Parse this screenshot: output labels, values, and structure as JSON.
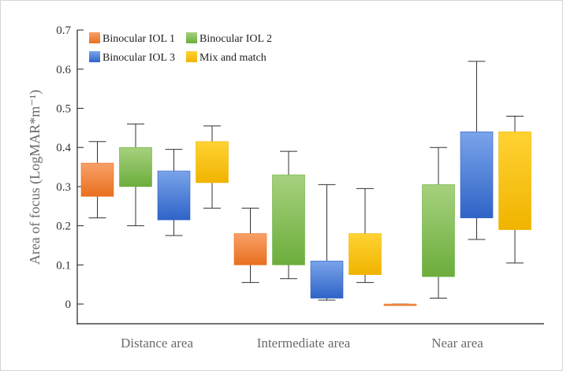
{
  "chart_data": {
    "type": "boxplot",
    "title": "",
    "xlabel": "",
    "ylabel": "Area of focus (LogMAR*m⁻¹)",
    "ylim": [
      -0.05,
      0.7
    ],
    "yticks": [
      0,
      0.1,
      0.2,
      0.3,
      0.4,
      0.5,
      0.6,
      0.7
    ],
    "ytick_labels": [
      "0",
      "0.1",
      "0.2",
      "0.3",
      "0.4",
      "0.5",
      "0.6",
      "0.7"
    ],
    "categories": [
      "Distance area",
      "Intermediate area",
      "Near area"
    ],
    "legend_position": "top-left",
    "series": [
      {
        "name": "Binocular IOL 1",
        "color_top": "#f8a068",
        "color_bottom": "#e8701e",
        "boxes": [
          {
            "min": 0.22,
            "q1": 0.275,
            "q3": 0.36,
            "max": 0.415
          },
          {
            "min": 0.055,
            "q1": 0.1,
            "q3": 0.18,
            "max": 0.245
          },
          {
            "min": -0.003,
            "q1": -0.003,
            "q3": 0.0,
            "max": 0.0
          }
        ]
      },
      {
        "name": "Binocular IOL 2",
        "color_top": "#a6d17e",
        "color_bottom": "#6cad3c",
        "boxes": [
          {
            "min": 0.2,
            "q1": 0.3,
            "q3": 0.4,
            "max": 0.46
          },
          {
            "min": 0.065,
            "q1": 0.1,
            "q3": 0.33,
            "max": 0.39
          },
          {
            "min": 0.015,
            "q1": 0.07,
            "q3": 0.305,
            "max": 0.4
          }
        ]
      },
      {
        "name": "Binocular IOL 3",
        "color_top": "#7aa4ea",
        "color_bottom": "#2f63c7",
        "boxes": [
          {
            "min": 0.175,
            "q1": 0.215,
            "q3": 0.34,
            "max": 0.395
          },
          {
            "min": 0.01,
            "q1": 0.015,
            "q3": 0.11,
            "max": 0.305
          },
          {
            "min": 0.165,
            "q1": 0.22,
            "q3": 0.44,
            "max": 0.62
          }
        ]
      },
      {
        "name": "Mix and match",
        "color_top": "#ffd233",
        "color_bottom": "#f0b400",
        "boxes": [
          {
            "min": 0.245,
            "q1": 0.31,
            "q3": 0.415,
            "max": 0.455
          },
          {
            "min": 0.055,
            "q1": 0.075,
            "q3": 0.18,
            "max": 0.295
          },
          {
            "min": 0.105,
            "q1": 0.19,
            "q3": 0.44,
            "max": 0.48
          }
        ]
      }
    ]
  }
}
